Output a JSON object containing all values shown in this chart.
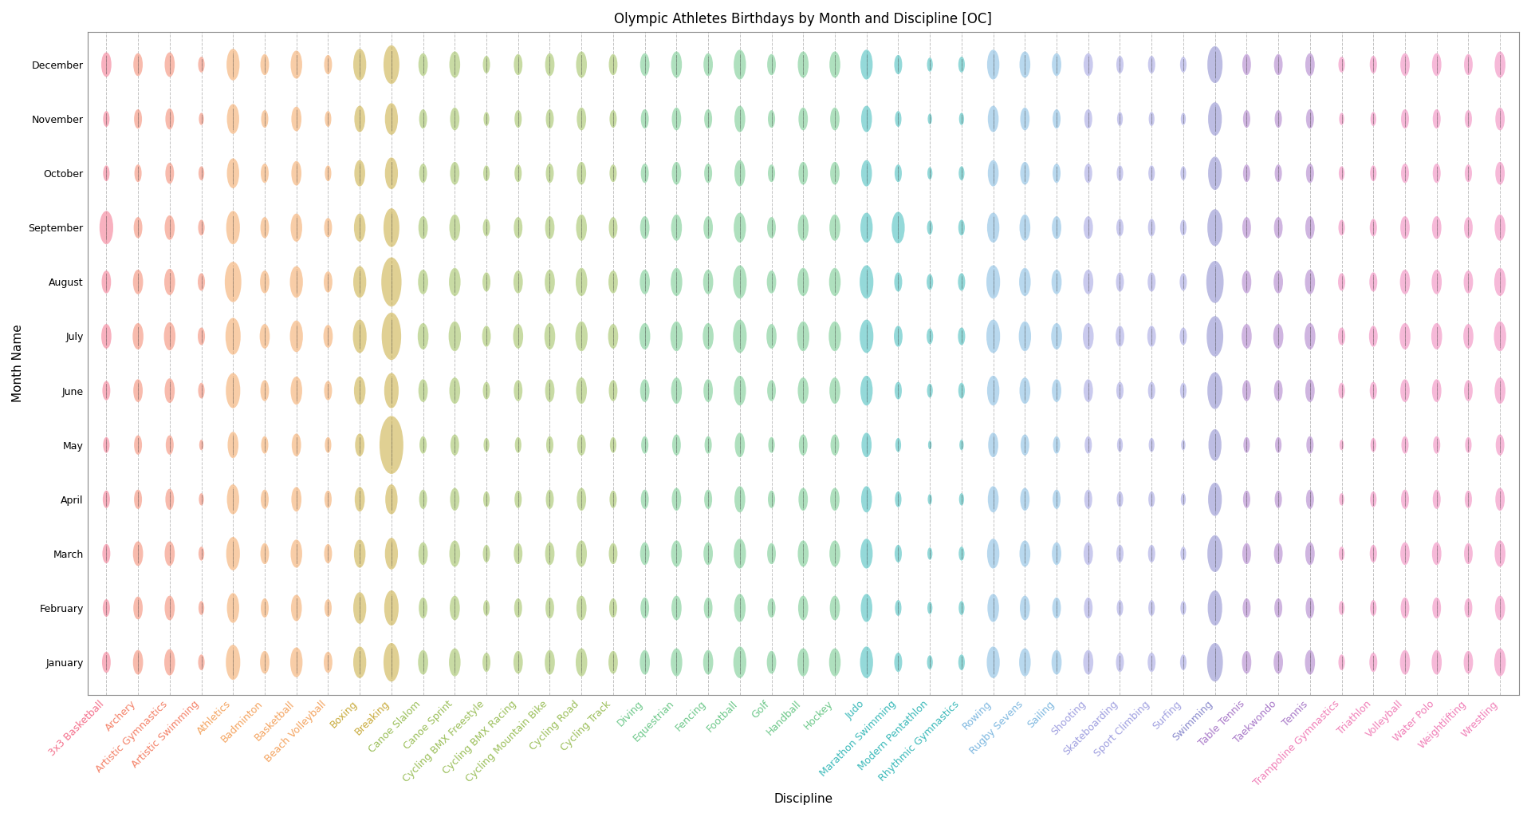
{
  "title": "Olympic Athletes Birthdays by Month and Discipline [OC]",
  "xlabel": "Discipline",
  "ylabel": "Month Name",
  "months": [
    "January",
    "February",
    "March",
    "April",
    "May",
    "June",
    "July",
    "August",
    "September",
    "October",
    "November",
    "December"
  ],
  "disciplines": [
    "3x3 Basketball",
    "Archery",
    "Artistic Gymnastics",
    "Artistic Swimming",
    "Athletics",
    "Badminton",
    "Basketball",
    "Beach Volleyball",
    "Boxing",
    "Breaking",
    "Canoe Slalom",
    "Canoe Sprint",
    "Cycling BMX Freestyle",
    "Cycling BMX Racing",
    "Cycling Mountain Bike",
    "Cycling Road",
    "Cycling Track",
    "Diving",
    "Equestrian",
    "Fencing",
    "Football",
    "Golf",
    "Handball",
    "Hockey",
    "Judo",
    "Marathon Swimming",
    "Modern Pentathlon",
    "Rhythmic Gymnastics",
    "Rowing",
    "Rugby Sevens",
    "Sailing",
    "Shooting",
    "Skateboarding",
    "Sport Climbing",
    "Surfing",
    "Swimming",
    "Table Tennis",
    "Taekwondo",
    "Tennis",
    "Trampoline Gymnastics",
    "Triathlon",
    "Volleyball",
    "Water Polo",
    "Weightlifting",
    "Wrestling"
  ],
  "discipline_colors": [
    "#F4718C",
    "#F4836A",
    "#F4836A",
    "#F4836A",
    "#F4A460",
    "#F4A460",
    "#F4A460",
    "#F4A460",
    "#C8AA3A",
    "#C8AA3A",
    "#9BBF5A",
    "#9BBF5A",
    "#9BBF5A",
    "#9BBF5A",
    "#9BBF5A",
    "#9BBF5A",
    "#9BBF5A",
    "#6DC88A",
    "#6DC88A",
    "#6DC88A",
    "#6DC88A",
    "#6DC88A",
    "#6DC88A",
    "#6DC88A",
    "#3CBABA",
    "#3CBABA",
    "#3CBABA",
    "#3CBABA",
    "#7EB8E0",
    "#7EB8E0",
    "#7EB8E0",
    "#A0A0E0",
    "#A0A0E0",
    "#A0A0E0",
    "#A0A0E0",
    "#8888CC",
    "#A878C8",
    "#A878C8",
    "#A878C8",
    "#F080B8",
    "#F080B8",
    "#F080B8",
    "#F080B8",
    "#F080B8",
    "#F080B8"
  ],
  "sizes": [
    [
      12,
      10,
      11,
      10,
      9,
      11,
      14,
      13,
      19,
      9,
      9,
      14
    ],
    [
      14,
      13,
      14,
      11,
      11,
      13,
      15,
      14,
      12,
      10,
      11,
      13
    ],
    [
      15,
      14,
      14,
      12,
      11,
      14,
      16,
      15,
      14,
      12,
      12,
      14
    ],
    [
      9,
      8,
      8,
      7,
      6,
      9,
      10,
      10,
      9,
      8,
      7,
      9
    ],
    [
      20,
      17,
      19,
      17,
      15,
      20,
      21,
      23,
      19,
      17,
      17,
      18
    ],
    [
      13,
      11,
      12,
      11,
      10,
      12,
      14,
      13,
      12,
      11,
      10,
      12
    ],
    [
      17,
      15,
      16,
      14,
      13,
      16,
      18,
      18,
      16,
      14,
      14,
      16
    ],
    [
      12,
      10,
      11,
      10,
      9,
      11,
      13,
      12,
      11,
      9,
      9,
      11
    ],
    [
      18,
      18,
      16,
      14,
      13,
      16,
      19,
      18,
      16,
      15,
      15,
      18
    ],
    [
      22,
      20,
      18,
      17,
      33,
      20,
      27,
      28,
      22,
      18,
      18,
      22
    ],
    [
      14,
      12,
      13,
      11,
      10,
      13,
      15,
      14,
      13,
      11,
      11,
      13
    ],
    [
      16,
      14,
      15,
      13,
      12,
      15,
      17,
      16,
      15,
      13,
      13,
      15
    ],
    [
      11,
      9,
      10,
      9,
      8,
      10,
      12,
      11,
      10,
      9,
      8,
      10
    ],
    [
      13,
      11,
      12,
      10,
      9,
      12,
      14,
      13,
      12,
      10,
      10,
      12
    ],
    [
      14,
      12,
      13,
      11,
      10,
      13,
      15,
      14,
      13,
      11,
      11,
      13
    ],
    [
      16,
      14,
      15,
      13,
      12,
      15,
      17,
      16,
      15,
      13,
      13,
      15
    ],
    [
      13,
      11,
      12,
      10,
      9,
      12,
      14,
      13,
      12,
      10,
      10,
      12
    ],
    [
      14,
      12,
      13,
      11,
      10,
      13,
      15,
      14,
      13,
      11,
      11,
      13
    ],
    [
      16,
      14,
      15,
      13,
      12,
      15,
      17,
      16,
      15,
      13,
      13,
      15
    ],
    [
      14,
      12,
      13,
      11,
      10,
      13,
      15,
      14,
      13,
      11,
      11,
      13
    ],
    [
      18,
      16,
      17,
      15,
      14,
      17,
      19,
      19,
      17,
      15,
      15,
      17
    ],
    [
      13,
      11,
      12,
      10,
      9,
      12,
      14,
      13,
      12,
      10,
      10,
      12
    ],
    [
      16,
      14,
      15,
      13,
      12,
      15,
      17,
      16,
      15,
      13,
      13,
      15
    ],
    [
      16,
      14,
      15,
      13,
      12,
      15,
      17,
      16,
      15,
      13,
      13,
      15
    ],
    [
      18,
      16,
      17,
      15,
      14,
      17,
      19,
      19,
      17,
      15,
      15,
      17
    ],
    [
      11,
      9,
      10,
      9,
      8,
      10,
      12,
      11,
      18,
      10,
      9,
      11
    ],
    [
      8,
      7,
      7,
      6,
      5,
      8,
      9,
      9,
      8,
      7,
      6,
      8
    ],
    [
      9,
      8,
      8,
      7,
      6,
      9,
      10,
      10,
      9,
      8,
      7,
      9
    ],
    [
      18,
      16,
      17,
      15,
      14,
      17,
      19,
      19,
      17,
      15,
      15,
      17
    ],
    [
      16,
      14,
      15,
      13,
      12,
      15,
      17,
      16,
      15,
      13,
      13,
      15
    ],
    [
      14,
      12,
      13,
      11,
      10,
      13,
      15,
      14,
      13,
      11,
      11,
      13
    ],
    [
      14,
      12,
      13,
      11,
      10,
      13,
      15,
      14,
      13,
      11,
      11,
      13
    ],
    [
      11,
      9,
      10,
      9,
      8,
      10,
      12,
      11,
      10,
      9,
      8,
      10
    ],
    [
      11,
      9,
      10,
      9,
      8,
      10,
      12,
      11,
      10,
      9,
      8,
      10
    ],
    [
      9,
      8,
      8,
      7,
      6,
      9,
      10,
      10,
      9,
      8,
      7,
      9
    ],
    [
      22,
      20,
      21,
      19,
      18,
      21,
      23,
      24,
      21,
      19,
      19,
      21
    ],
    [
      13,
      11,
      12,
      10,
      9,
      12,
      14,
      13,
      12,
      10,
      10,
      12
    ],
    [
      13,
      11,
      12,
      10,
      9,
      12,
      14,
      13,
      12,
      10,
      10,
      12
    ],
    [
      14,
      12,
      13,
      11,
      10,
      13,
      15,
      14,
      13,
      11,
      11,
      13
    ],
    [
      9,
      8,
      8,
      7,
      6,
      9,
      10,
      10,
      9,
      8,
      7,
      9
    ],
    [
      11,
      9,
      10,
      9,
      8,
      10,
      12,
      11,
      10,
      9,
      8,
      10
    ],
    [
      14,
      12,
      13,
      11,
      10,
      13,
      15,
      14,
      13,
      11,
      11,
      13
    ],
    [
      14,
      12,
      13,
      11,
      10,
      13,
      15,
      14,
      13,
      11,
      11,
      13
    ],
    [
      13,
      11,
      12,
      10,
      9,
      12,
      14,
      13,
      12,
      10,
      10,
      12
    ],
    [
      16,
      14,
      15,
      13,
      12,
      15,
      17,
      16,
      15,
      13,
      13,
      15
    ]
  ],
  "background_color": "#ffffff",
  "title_fontsize": 12,
  "label_fontsize": 11,
  "tick_fontsize": 9
}
